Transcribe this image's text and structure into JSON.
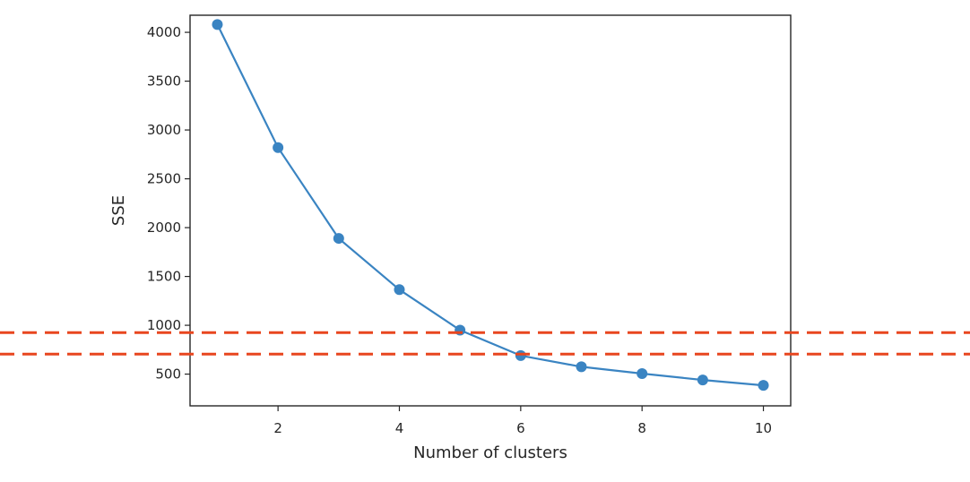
{
  "chart_data": {
    "type": "line",
    "title": "",
    "xlabel": "Number of clusters",
    "ylabel": "SSE",
    "xlim": [
      0.55,
      10.45
    ],
    "ylim": [
      175,
      4175
    ],
    "xticks": [
      2,
      4,
      6,
      8,
      10
    ],
    "yticks": [
      500,
      1000,
      1500,
      2000,
      2500,
      3000,
      3500,
      4000
    ],
    "grid": false,
    "legend": "none",
    "marker": "circle",
    "series": [
      {
        "x": [
          1,
          2,
          3,
          4,
          5,
          6,
          7,
          8,
          9,
          10
        ],
        "values": [
          4080,
          2820,
          1890,
          1365,
          950,
          690,
          575,
          505,
          440,
          385
        ],
        "color": "#3a84c2"
      }
    ],
    "annotations": [
      {
        "type": "horizontal-dashed-line",
        "y": 925,
        "color": "#e8461f"
      },
      {
        "type": "horizontal-dashed-line",
        "y": 705,
        "color": "#e8461f"
      }
    ]
  }
}
